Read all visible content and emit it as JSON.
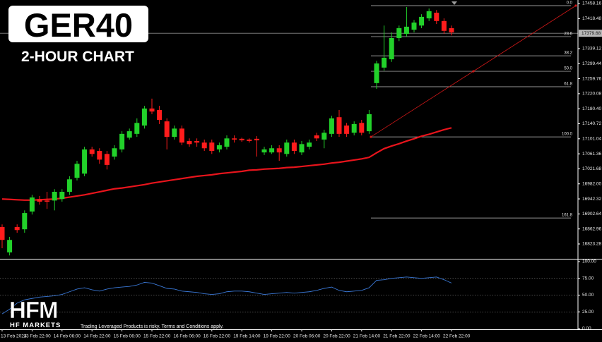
{
  "chart_data": {
    "type": "candlestick",
    "title": "GER40",
    "subtitle": "2-HOUR CHART",
    "categories": [
      "13 Feb 2024",
      null,
      null,
      null,
      "13 Feb 22:00",
      null,
      null,
      null,
      "14 Feb 06:00",
      null,
      null,
      null,
      "14 Feb 22:00",
      null,
      null,
      null,
      "15 Feb 06:00",
      null,
      null,
      null,
      "15 Feb 22:00",
      null,
      null,
      null,
      "16 Feb 06:00",
      null,
      null,
      null,
      "16 Feb 22:00",
      null,
      null,
      null,
      "19 Feb 14:00",
      null,
      null,
      null,
      "19 Feb 22:00",
      null,
      null,
      null,
      "20 Feb 06:00",
      null,
      null,
      null,
      "20 Feb 22:00",
      null,
      null,
      null,
      "21 Feb 14:00",
      null,
      null,
      null,
      "21 Feb 22:00",
      null,
      null,
      null,
      "22 Feb 14:00",
      null,
      null,
      null,
      "22 Feb 22:00"
    ],
    "open": [
      16868,
      16801,
      16868,
      16862,
      16909,
      16942,
      16938,
      16938,
      16942,
      16961,
      16998,
      17009,
      17073,
      17069,
      17061,
      17054,
      17073,
      17104,
      17114,
      17136,
      17181,
      17177,
      17147,
      17106,
      17128,
      17095,
      17095,
      17091,
      17091,
      17073,
      17080,
      17102,
      17101,
      17099,
      17101,
      17065,
      17065,
      17076,
      17061,
      17091,
      17065,
      17080,
      17110,
      17099,
      17114,
      17158,
      17136,
      17117,
      17143,
      17121,
      17248,
      17289,
      17311,
      17367,
      17378,
      17389,
      17400,
      17419,
      17434,
      17412,
      17393
    ],
    "high": [
      16875,
      16842,
      16875,
      16912,
      16953,
      16950,
      16961,
      16968,
      16968,
      17002,
      17043,
      17080,
      17080,
      17076,
      17069,
      17084,
      17121,
      17128,
      17155,
      17188,
      17207,
      17188,
      17155,
      17136,
      17136,
      17102,
      17102,
      17099,
      17099,
      17091,
      17110,
      17110,
      17104,
      17102,
      17108,
      17080,
      17084,
      17084,
      17099,
      17099,
      17095,
      17099,
      17117,
      17125,
      17162,
      17177,
      17143,
      17147,
      17151,
      17177,
      17307,
      17400,
      17382,
      17400,
      17449,
      17415,
      17430,
      17445,
      17441,
      17419,
      17400
    ],
    "low": [
      16812,
      16793,
      16853,
      16853,
      16901,
      16927,
      16916,
      16912,
      16935,
      16953,
      16991,
      17002,
      17054,
      17035,
      17020,
      17046,
      17065,
      17099,
      17106,
      17128,
      17166,
      17140,
      17073,
      17099,
      17084,
      17080,
      17080,
      17069,
      17061,
      17065,
      17073,
      17091,
      17093,
      17091,
      17054,
      17058,
      17061,
      17043,
      17054,
      17061,
      17058,
      17073,
      17095,
      17076,
      17106,
      17106,
      17106,
      17110,
      17110,
      17114,
      17233,
      17281,
      17304,
      17359,
      17371,
      17382,
      17393,
      17412,
      17404,
      17378,
      17374
    ],
    "close": [
      16834,
      16834,
      16860,
      16905,
      16946,
      16935,
      16935,
      16961,
      16961,
      16994,
      17035,
      17073,
      17061,
      17046,
      17032,
      17076,
      17114,
      17121,
      17143,
      17181,
      17173,
      17151,
      17106,
      17128,
      17091,
      17087,
      17091,
      17076,
      17069,
      17084,
      17102,
      17099,
      17097,
      17095,
      17097,
      17073,
      17076,
      17065,
      17091,
      17069,
      17087,
      17091,
      17102,
      17117,
      17155,
      17114,
      17114,
      17140,
      17117,
      17166,
      17300,
      17315,
      17367,
      17393,
      17397,
      17408,
      17423,
      17438,
      17412,
      17386,
      17382
    ],
    "up_color": "#22d12a",
    "down_color": "#ff1c1c",
    "ylim": [
      16786,
      17467.5
    ],
    "yticks": [
      17458.16,
      17418.48,
      17339.12,
      17299.44,
      17259.76,
      17220.08,
      {
        "value": 17180.4,
        "label": "17180.40"
      },
      17140.72,
      17101.04,
      17061.36,
      17021.68,
      {
        "value": 16982,
        "label": "16982.00"
      },
      16942.32,
      16902.64,
      16862.96,
      16823.28
    ],
    "current_price": 17379.68,
    "moving_average": {
      "color": "#e8141c",
      "values": [
        16942,
        16941,
        16940,
        16939,
        16939,
        16940,
        16941,
        16942,
        16944,
        16947,
        16950,
        16953,
        16957,
        16961,
        16965,
        16969,
        16971,
        16974,
        16977,
        16980,
        16984,
        16987,
        16990,
        16993,
        16996,
        16999,
        17002,
        17004,
        17006,
        17009,
        17011,
        17013,
        17015,
        17018,
        17019,
        17021,
        17022,
        17023,
        17025,
        17026,
        17028,
        17030,
        17032,
        17034,
        17037,
        17039,
        17042,
        17045,
        17048,
        17052,
        17064,
        17075,
        17082,
        17088,
        17095,
        17101,
        17108,
        17113,
        17119,
        17125,
        17130
      ]
    },
    "fibonacci": {
      "high": 17452.6,
      "low": 17106.1,
      "color": "#d01818",
      "levels": [
        {
          "value": 0,
          "label": "0.0"
        },
        23.6,
        38.2,
        {
          "value": 50,
          "label": "50.0"
        },
        61.8,
        {
          "value": 100,
          "label": "100.0"
        },
        161.8
      ]
    },
    "indicator": {
      "color": "#3a78d6",
      "ylim": [
        0,
        100
      ],
      "yticks": [
        {
          "value": 100,
          "label": "100.00"
        },
        {
          "value": 75,
          "label": "75.00"
        },
        {
          "value": 50,
          "label": "50.00"
        },
        {
          "value": 25,
          "label": "25.00"
        },
        {
          "value": 0,
          "label": "0.00"
        }
      ],
      "values": [
        22,
        29,
        38,
        43,
        45,
        47,
        48,
        49,
        51,
        55,
        59,
        61,
        58,
        56,
        59,
        61,
        62,
        63,
        65,
        69,
        68,
        64,
        60,
        59,
        56,
        55,
        54,
        52,
        51,
        52,
        55,
        56,
        56,
        55,
        53,
        51,
        52,
        53,
        54,
        53,
        54,
        55,
        57,
        60,
        62,
        57,
        55,
        56,
        57,
        61,
        72,
        73,
        75,
        76,
        77,
        76,
        75,
        76,
        77,
        73,
        68
      ]
    }
  },
  "brand": {
    "logo": "HFM",
    "name": "HF MARKETS",
    "disclaimer": "Trading Leveraged Products is risky. Terms and Conditions apply."
  }
}
